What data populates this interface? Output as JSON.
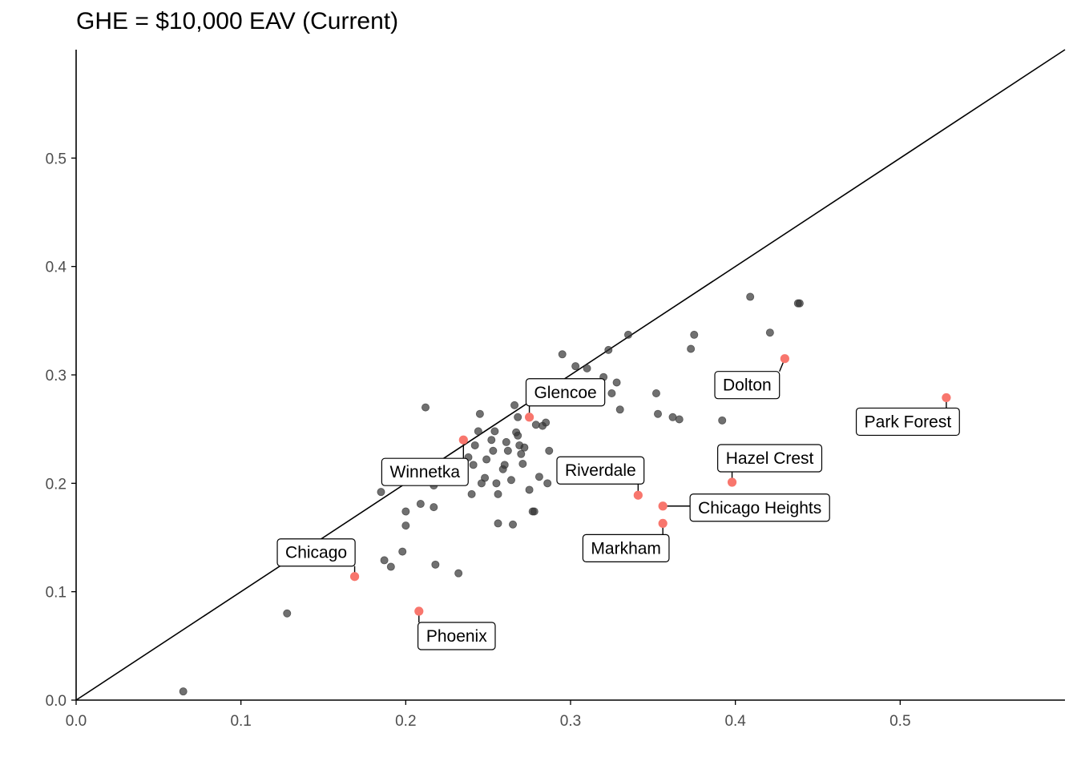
{
  "chart_data": {
    "type": "scatter",
    "title": "GHE = $10,000 EAV (Current)",
    "xlabel": "",
    "ylabel": "",
    "xlim": [
      0,
      0.6
    ],
    "ylim": [
      0,
      0.6
    ],
    "x_ticks": [
      "0.0",
      "0.1",
      "0.2",
      "0.3",
      "0.4",
      "0.5"
    ],
    "y_ticks": [
      "0.0",
      "0.1",
      "0.2",
      "0.3",
      "0.4",
      "0.5"
    ],
    "grid": false,
    "reference_line": "y = x",
    "colors": {
      "points": "#333333",
      "highlight": "#F8766D",
      "line": "#000000",
      "axis": "#000000",
      "tick_text": "#4d4d4d"
    },
    "points": [
      {
        "x": 0.065,
        "y": 0.008
      },
      {
        "x": 0.128,
        "y": 0.08
      },
      {
        "x": 0.187,
        "y": 0.129
      },
      {
        "x": 0.191,
        "y": 0.123
      },
      {
        "x": 0.198,
        "y": 0.137
      },
      {
        "x": 0.218,
        "y": 0.125
      },
      {
        "x": 0.232,
        "y": 0.117
      },
      {
        "x": 0.2,
        "y": 0.161
      },
      {
        "x": 0.2,
        "y": 0.174
      },
      {
        "x": 0.185,
        "y": 0.192
      },
      {
        "x": 0.209,
        "y": 0.181
      },
      {
        "x": 0.217,
        "y": 0.178
      },
      {
        "x": 0.212,
        "y": 0.27
      },
      {
        "x": 0.217,
        "y": 0.198
      },
      {
        "x": 0.217,
        "y": 0.203
      },
      {
        "x": 0.222,
        "y": 0.211
      },
      {
        "x": 0.229,
        "y": 0.205
      },
      {
        "x": 0.233,
        "y": 0.212
      },
      {
        "x": 0.238,
        "y": 0.224
      },
      {
        "x": 0.24,
        "y": 0.19
      },
      {
        "x": 0.241,
        "y": 0.217
      },
      {
        "x": 0.242,
        "y": 0.235
      },
      {
        "x": 0.244,
        "y": 0.248
      },
      {
        "x": 0.245,
        "y": 0.264
      },
      {
        "x": 0.246,
        "y": 0.2
      },
      {
        "x": 0.248,
        "y": 0.205
      },
      {
        "x": 0.249,
        "y": 0.222
      },
      {
        "x": 0.252,
        "y": 0.24
      },
      {
        "x": 0.253,
        "y": 0.23
      },
      {
        "x": 0.254,
        "y": 0.248
      },
      {
        "x": 0.255,
        "y": 0.2
      },
      {
        "x": 0.256,
        "y": 0.19
      },
      {
        "x": 0.256,
        "y": 0.163
      },
      {
        "x": 0.259,
        "y": 0.213
      },
      {
        "x": 0.26,
        "y": 0.217
      },
      {
        "x": 0.261,
        "y": 0.238
      },
      {
        "x": 0.262,
        "y": 0.23
      },
      {
        "x": 0.264,
        "y": 0.203
      },
      {
        "x": 0.265,
        "y": 0.162
      },
      {
        "x": 0.266,
        "y": 0.272
      },
      {
        "x": 0.267,
        "y": 0.247
      },
      {
        "x": 0.268,
        "y": 0.244
      },
      {
        "x": 0.269,
        "y": 0.235
      },
      {
        "x": 0.27,
        "y": 0.227
      },
      {
        "x": 0.271,
        "y": 0.218
      },
      {
        "x": 0.272,
        "y": 0.233
      },
      {
        "x": 0.268,
        "y": 0.261
      },
      {
        "x": 0.275,
        "y": 0.194
      },
      {
        "x": 0.277,
        "y": 0.174
      },
      {
        "x": 0.278,
        "y": 0.174
      },
      {
        "x": 0.279,
        "y": 0.254
      },
      {
        "x": 0.281,
        "y": 0.206
      },
      {
        "x": 0.283,
        "y": 0.253
      },
      {
        "x": 0.285,
        "y": 0.256
      },
      {
        "x": 0.286,
        "y": 0.2
      },
      {
        "x": 0.287,
        "y": 0.23
      },
      {
        "x": 0.295,
        "y": 0.319
      },
      {
        "x": 0.303,
        "y": 0.308
      },
      {
        "x": 0.31,
        "y": 0.306
      },
      {
        "x": 0.32,
        "y": 0.298
      },
      {
        "x": 0.323,
        "y": 0.323
      },
      {
        "x": 0.325,
        "y": 0.283
      },
      {
        "x": 0.328,
        "y": 0.293
      },
      {
        "x": 0.33,
        "y": 0.268
      },
      {
        "x": 0.335,
        "y": 0.337
      },
      {
        "x": 0.352,
        "y": 0.283
      },
      {
        "x": 0.353,
        "y": 0.264
      },
      {
        "x": 0.362,
        "y": 0.261
      },
      {
        "x": 0.366,
        "y": 0.259
      },
      {
        "x": 0.373,
        "y": 0.324
      },
      {
        "x": 0.375,
        "y": 0.337
      },
      {
        "x": 0.392,
        "y": 0.258
      },
      {
        "x": 0.409,
        "y": 0.372
      },
      {
        "x": 0.421,
        "y": 0.339
      },
      {
        "x": 0.438,
        "y": 0.366
      },
      {
        "x": 0.439,
        "y": 0.366
      }
    ],
    "labeled_points": [
      {
        "name": "Glencoe",
        "x": 0.275,
        "y": 0.261
      },
      {
        "name": "Winnetka",
        "x": 0.235,
        "y": 0.24
      },
      {
        "name": "Chicago",
        "x": 0.169,
        "y": 0.114
      },
      {
        "name": "Phoenix",
        "x": 0.208,
        "y": 0.082
      },
      {
        "name": "Riverdale",
        "x": 0.341,
        "y": 0.189
      },
      {
        "name": "Markham",
        "x": 0.356,
        "y": 0.163
      },
      {
        "name": "Chicago Heights",
        "x": 0.356,
        "y": 0.179
      },
      {
        "name": "Hazel Crest",
        "x": 0.398,
        "y": 0.201
      },
      {
        "name": "Dolton",
        "x": 0.43,
        "y": 0.315
      },
      {
        "name": "Park Forest",
        "x": 0.528,
        "y": 0.279
      }
    ]
  }
}
